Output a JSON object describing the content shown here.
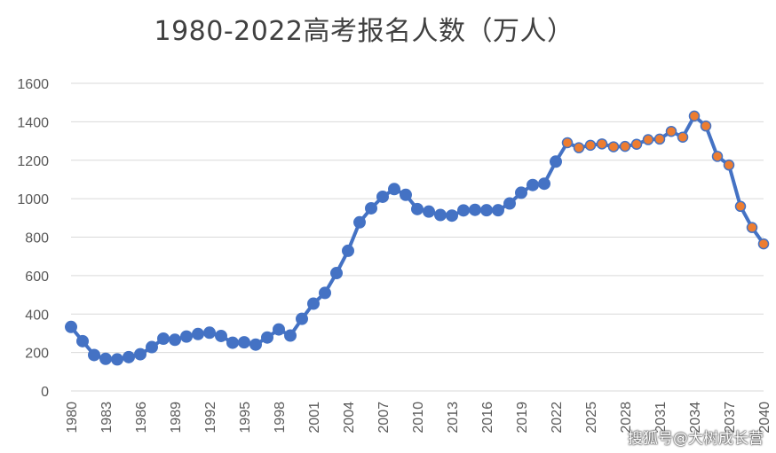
{
  "title": "1980-2022高考报名人数（万人）",
  "watermark": "搜狐号@大树成长营",
  "colors": {
    "series": "#4472C4",
    "projection_marker": "#ED7D31",
    "grid": "#d9d9d9",
    "axis_text": "#595959"
  },
  "chart_data": {
    "type": "line",
    "title": "1980-2022高考报名人数（万人）",
    "xlabel": "",
    "ylabel": "",
    "ylim": [
      0,
      1600
    ],
    "yticks": [
      0,
      200,
      400,
      600,
      800,
      1000,
      1200,
      1400,
      1600
    ],
    "xlim": [
      1980,
      2040
    ],
    "xtick_labels": [
      "1980",
      "1983",
      "1986",
      "1989",
      "1992",
      "1995",
      "1998",
      "2001",
      "2004",
      "2007",
      "2010",
      "2013",
      "2016",
      "2019",
      "2022",
      "2025",
      "2028",
      "2031",
      "2034",
      "2037",
      "2040"
    ],
    "grid": true,
    "legend": "none",
    "series": [
      {
        "style": "actual",
        "marker": "blue-circle",
        "x": [
          1980,
          1981,
          1982,
          1983,
          1984,
          1985,
          1986,
          1987,
          1988,
          1989,
          1990,
          1991,
          1992,
          1993,
          1994,
          1995,
          1996,
          1997,
          1998,
          1999,
          2000,
          2001,
          2002,
          2003,
          2004,
          2005,
          2006,
          2007,
          2008,
          2009,
          2010,
          2011,
          2012,
          2013,
          2014,
          2015,
          2016,
          2017,
          2018,
          2019,
          2020,
          2021,
          2022
        ],
        "y": [
          333,
          259,
          187,
          167,
          164,
          176,
          191,
          228,
          272,
          266,
          283,
          296,
          303,
          286,
          251,
          253,
          241,
          278,
          320,
          288,
          375,
          454,
          510,
          613,
          729,
          877,
          950,
          1010,
          1050,
          1020,
          946,
          933,
          915,
          912,
          939,
          942,
          940,
          940,
          975,
          1031,
          1071,
          1078,
          1193
        ]
      },
      {
        "style": "projection",
        "marker": "orange-circle",
        "x": [
          2023,
          2024,
          2025,
          2026,
          2027,
          2028,
          2029,
          2030,
          2031,
          2032,
          2033,
          2034,
          2035,
          2036,
          2037,
          2038,
          2039,
          2040
        ],
        "y": [
          1291,
          1265,
          1278,
          1285,
          1270,
          1272,
          1283,
          1307,
          1310,
          1350,
          1320,
          1430,
          1378,
          1220,
          1175,
          960,
          850,
          765
        ]
      }
    ]
  }
}
